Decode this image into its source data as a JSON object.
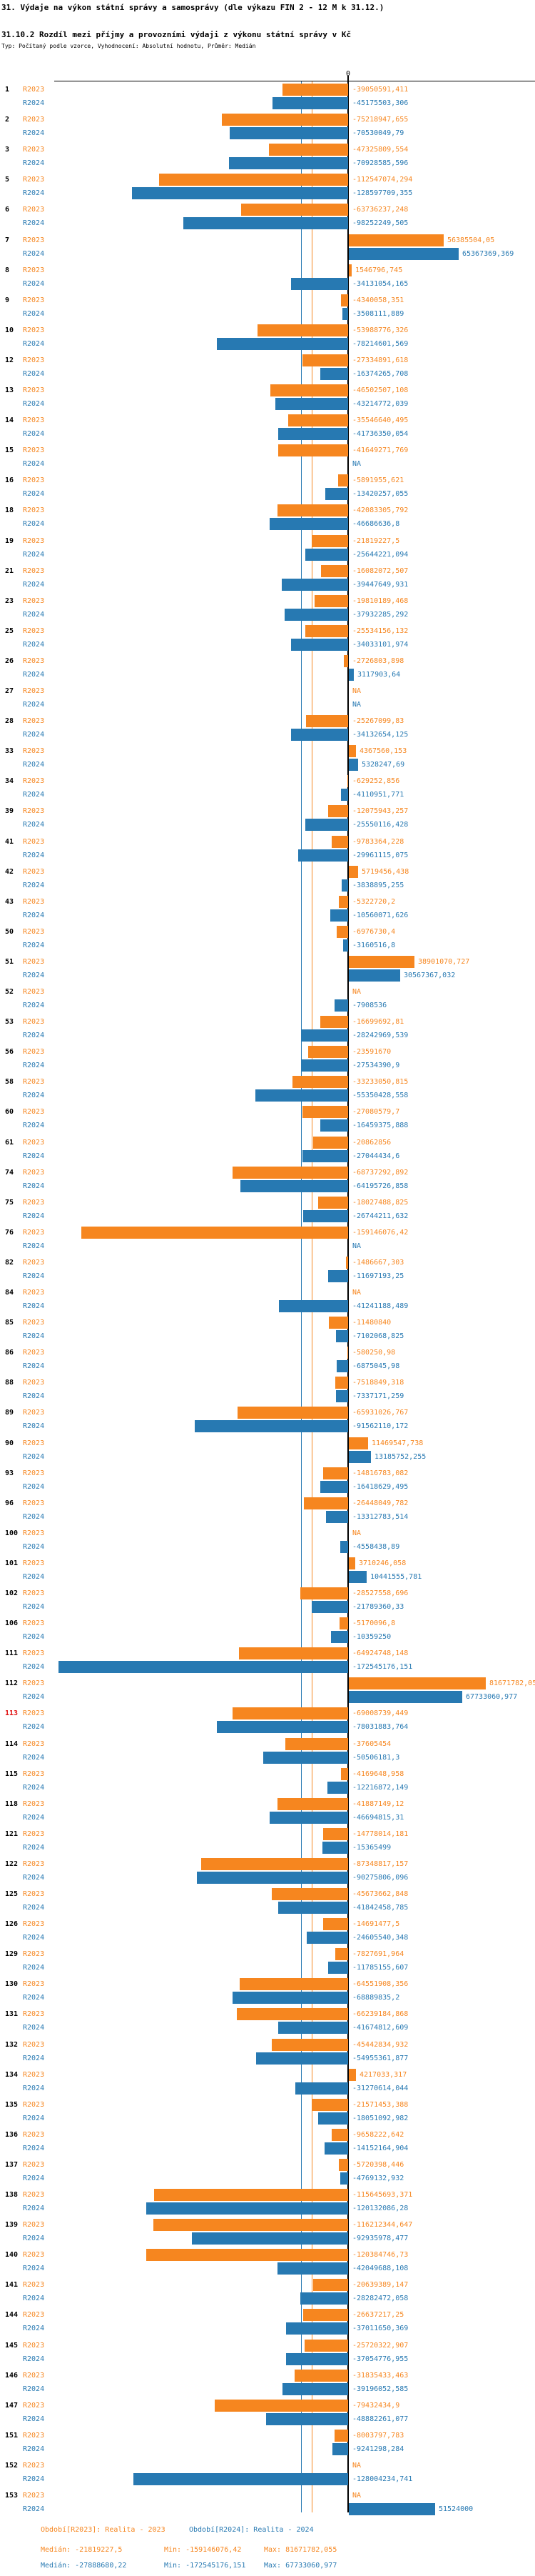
{
  "title": "31. Výdaje na výkon státní správy a samosprávy (dle výkazu FIN 2 - 12 M k 31.12.)",
  "subtitle": "31.10.2 Rozdíl mezi příjmy a provozními výdaji z výkonu státní správy v Kč",
  "meta_line": "Typ: Počítaný podle vzorce, Vyhodnocení: Absolutní hodnotu, Průměr: Medián",
  "colors": {
    "r2023": "#F6861F",
    "r2024": "#2779B2",
    "highlight_row_number": "#E01010",
    "axis": "#000000"
  },
  "axis": {
    "zero_label": "0"
  },
  "series_labels": {
    "r2023": "R2023",
    "r2024": "R2024"
  },
  "footer": {
    "legend_r2023": "Období[R2023]: Realita - 2023",
    "legend_r2024": "Období[R2024]: Realita - 2024",
    "stats_r2023": {
      "median": "Medián: -21819227,5",
      "min": "Min: -159146076,42",
      "max": "Max: 81671782,055"
    },
    "stats_r2024": {
      "median": "Medián: -27888680,22",
      "min": "Min: -172545176,151",
      "max": "Max: 67733060,977"
    }
  },
  "chart_data": {
    "type": "bar",
    "orientation": "horizontal",
    "title": "31.10.2 Rozdíl mezi příjmy a provozními výdaji z výkonu státní správy v Kč",
    "series_names": [
      "R2023",
      "R2024"
    ],
    "value_format": "czech_decimal_comma",
    "na_text": "NA",
    "medians": {
      "R2023": -21819227.5,
      "R2024": -27888680.22
    },
    "min": {
      "R2023": -159146076.42,
      "R2024": -172545176.151
    },
    "max": {
      "R2023": 81671782.055,
      "R2024": 67733060.977
    },
    "rows": [
      {
        "id": "1",
        "R2023": "-39050591,411",
        "R2024": "-45175503,306"
      },
      {
        "id": "2",
        "R2023": "-75218947,655",
        "R2024": "-70530049,79"
      },
      {
        "id": "3",
        "R2023": "-47325809,554",
        "R2024": "-70928585,596"
      },
      {
        "id": "5",
        "R2023": "-112547074,294",
        "R2024": "-128597709,355"
      },
      {
        "id": "6",
        "R2023": "-63736237,248",
        "R2024": "-98252249,505"
      },
      {
        "id": "7",
        "R2023": "56385504,05",
        "R2024": "65367369,369"
      },
      {
        "id": "8",
        "R2023": "1546796,745",
        "R2024": "-34131054,165"
      },
      {
        "id": "9",
        "R2023": "-4340058,351",
        "R2024": "-3508111,889"
      },
      {
        "id": "10",
        "R2023": "-53988776,326",
        "R2024": "-78214601,569"
      },
      {
        "id": "12",
        "R2023": "-27334891,618",
        "R2024": "-16374265,708"
      },
      {
        "id": "13",
        "R2023": "-46502507,108",
        "R2024": "-43214772,039"
      },
      {
        "id": "14",
        "R2023": "-35546640,495",
        "R2024": "-41736350,054"
      },
      {
        "id": "15",
        "R2023": "-41649271,769",
        "R2024": "NA"
      },
      {
        "id": "16",
        "R2023": "-5891955,621",
        "R2024": "-13420257,055"
      },
      {
        "id": "18",
        "R2023": "-42083305,792",
        "R2024": "-46686636,8"
      },
      {
        "id": "19",
        "R2023": "-21819227,5",
        "R2024": "-25644221,094"
      },
      {
        "id": "21",
        "R2023": "-16082072,507",
        "R2024": "-39447649,931"
      },
      {
        "id": "23",
        "R2023": "-19810189,468",
        "R2024": "-37932285,292"
      },
      {
        "id": "25",
        "R2023": "-25534156,132",
        "R2024": "-34033101,974"
      },
      {
        "id": "26",
        "R2023": "-2726803,898",
        "R2024": "3117903,64"
      },
      {
        "id": "27",
        "R2023": "NA",
        "R2024": "NA"
      },
      {
        "id": "28",
        "R2023": "-25267099,83",
        "R2024": "-34132654,125"
      },
      {
        "id": "33",
        "R2023": "4367560,153",
        "R2024": "5328247,69"
      },
      {
        "id": "34",
        "R2023": "-629252,856",
        "R2024": "-4110951,771"
      },
      {
        "id": "39",
        "R2023": "-12075943,257",
        "R2024": "-25550116,428"
      },
      {
        "id": "41",
        "R2023": "-9783364,228",
        "R2024": "-29961115,075"
      },
      {
        "id": "42",
        "R2023": "5719456,438",
        "R2024": "-3838895,255"
      },
      {
        "id": "43",
        "R2023": "-5322720,2",
        "R2024": "-10560071,626"
      },
      {
        "id": "50",
        "R2023": "-6976730,4",
        "R2024": "-3160516,8"
      },
      {
        "id": "51",
        "R2023": "38901070,727",
        "R2024": "30567367,032"
      },
      {
        "id": "52",
        "R2023": "NA",
        "R2024": "-7908536"
      },
      {
        "id": "53",
        "R2023": "-16699692,81",
        "R2024": "-28242969,539"
      },
      {
        "id": "56",
        "R2023": "-23591670",
        "R2024": "-27534390,9"
      },
      {
        "id": "58",
        "R2023": "-33233050,815",
        "R2024": "-55350428,558"
      },
      {
        "id": "60",
        "R2023": "-27080579,7",
        "R2024": "-16459375,888"
      },
      {
        "id": "61",
        "R2023": "-20862856",
        "R2024": "-27044434,6"
      },
      {
        "id": "74",
        "R2023": "-68737292,892",
        "R2024": "-64195726,858"
      },
      {
        "id": "75",
        "R2023": "-18027488,825",
        "R2024": "-26744211,632"
      },
      {
        "id": "76",
        "R2023": "-159146076,42",
        "R2024": "NA"
      },
      {
        "id": "82",
        "R2023": "-1486667,303",
        "R2024": "-11697193,25"
      },
      {
        "id": "84",
        "R2023": "NA",
        "R2024": "-41241188,489"
      },
      {
        "id": "85",
        "R2023": "-11480840",
        "R2024": "-7102068,825"
      },
      {
        "id": "86",
        "R2023": "-580250,98",
        "R2024": "-6875045,98"
      },
      {
        "id": "88",
        "R2023": "-7518849,318",
        "R2024": "-7337171,259"
      },
      {
        "id": "89",
        "R2023": "-65931026,767",
        "R2024": "-91562110,172"
      },
      {
        "id": "90",
        "R2023": "11469547,738",
        "R2024": "13185752,255"
      },
      {
        "id": "93",
        "R2023": "-14816783,082",
        "R2024": "-16418629,495"
      },
      {
        "id": "96",
        "R2023": "-26448049,782",
        "R2024": "-13312783,514"
      },
      {
        "id": "100",
        "R2023": "NA",
        "R2024": "-4558438,89"
      },
      {
        "id": "101",
        "R2023": "3710246,058",
        "R2024": "10441555,781"
      },
      {
        "id": "102",
        "R2023": "-28527558,696",
        "R2024": "-21789360,33"
      },
      {
        "id": "106",
        "R2023": "-5170096,8",
        "R2024": "-10359250"
      },
      {
        "id": "111",
        "R2023": "-64924748,148",
        "R2024": "-172545176,151"
      },
      {
        "id": "112",
        "R2023": "81671782,055",
        "R2024": "67733060,977"
      },
      {
        "id": "113",
        "highlight": true,
        "R2023": "-69008739,449",
        "R2024": "-78031883,764"
      },
      {
        "id": "114",
        "R2023": "-37605454",
        "R2024": "-50506181,3"
      },
      {
        "id": "115",
        "R2023": "-4169648,958",
        "R2024": "-12216872,149"
      },
      {
        "id": "118",
        "R2023": "-41887149,12",
        "R2024": "-46694815,31"
      },
      {
        "id": "121",
        "R2023": "-14778014,181",
        "R2024": "-15365499"
      },
      {
        "id": "122",
        "R2023": "-87348817,157",
        "R2024": "-90275806,096"
      },
      {
        "id": "125",
        "R2023": "-45673662,848",
        "R2024": "-41842458,785"
      },
      {
        "id": "126",
        "R2023": "-14691477,5",
        "R2024": "-24605540,348"
      },
      {
        "id": "129",
        "R2023": "-7827691,964",
        "R2024": "-11785155,607"
      },
      {
        "id": "130",
        "R2023": "-64551908,356",
        "R2024": "-68889835,2"
      },
      {
        "id": "131",
        "R2023": "-66239184,868",
        "R2024": "-41674812,609"
      },
      {
        "id": "132",
        "R2023": "-45442834,932",
        "R2024": "-54955361,877"
      },
      {
        "id": "134",
        "R2023": "4217033,317",
        "R2024": "-31270614,044"
      },
      {
        "id": "135",
        "R2023": "-21571453,388",
        "R2024": "-18051092,982"
      },
      {
        "id": "136",
        "R2023": "-9658222,642",
        "R2024": "-14152164,904"
      },
      {
        "id": "137",
        "R2023": "-5720398,446",
        "R2024": "-4769132,932"
      },
      {
        "id": "138",
        "R2023": "-115645693,371",
        "R2024": "-120132086,28"
      },
      {
        "id": "139",
        "R2023": "-116212344,647",
        "R2024": "-92935978,477"
      },
      {
        "id": "140",
        "R2023": "-120384746,73",
        "R2024": "-42049688,108"
      },
      {
        "id": "141",
        "R2023": "-20639389,147",
        "R2024": "-28282472,058"
      },
      {
        "id": "144",
        "R2023": "-26637217,25",
        "R2024": "-37011650,369"
      },
      {
        "id": "145",
        "R2023": "-25720322,907",
        "R2024": "-37054776,955"
      },
      {
        "id": "146",
        "R2023": "-31835433,463",
        "R2024": "-39196052,585"
      },
      {
        "id": "147",
        "R2023": "-79432434,9",
        "R2024": "-48882261,077"
      },
      {
        "id": "151",
        "R2023": "-8003797,783",
        "R2024": "-9241298,284"
      },
      {
        "id": "152",
        "R2023": "NA",
        "R2024": "-128004234,741"
      },
      {
        "id": "153",
        "R2023": "NA",
        "R2024": "51524000"
      }
    ]
  }
}
